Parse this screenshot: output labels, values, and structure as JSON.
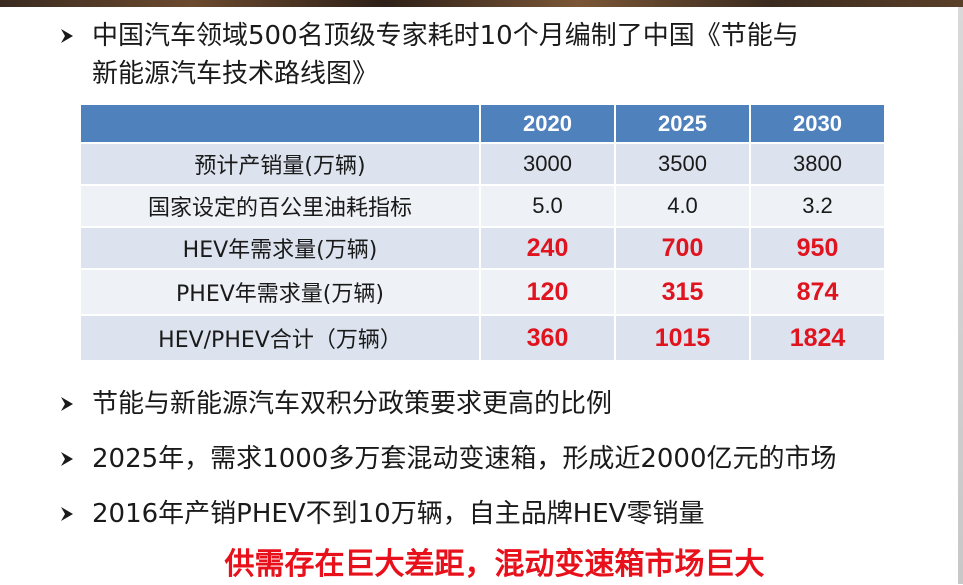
{
  "bullets": [
    "中国汽车领域500名顶级专家耗时10个月编制了中国《节能与新能源汽车技术路线图》",
    "节能与新能源汽车双积分政策要求更高的比例",
    "2025年，需求1000多万套混动变速箱，形成近2000亿元的市场",
    "2016年产销PHEV不到10万辆，自主品牌HEV零销量"
  ],
  "bullet1_lines": [
    "中国汽车领域500名顶级专家耗时10个月编制了中国《节能与",
    "新能源汽车技术路线图》"
  ],
  "table": {
    "headers": [
      "",
      "2020",
      "2025",
      "2030"
    ],
    "rows": [
      {
        "label": "预计产销量(万辆)",
        "values": [
          "3000",
          "3500",
          "3800"
        ],
        "highlight": false
      },
      {
        "label": "国家设定的百公里油耗指标",
        "values": [
          "5.0",
          "4.0",
          "3.2"
        ],
        "highlight": false
      },
      {
        "label": "HEV年需求量(万辆)",
        "values": [
          "240",
          "700",
          "950"
        ],
        "highlight": true
      },
      {
        "label": "PHEV年需求量(万辆)",
        "values": [
          "120",
          "315",
          "874"
        ],
        "highlight": true
      },
      {
        "label": "HEV/PHEV合计（万辆）",
        "values": [
          "360",
          "1015",
          "1824"
        ],
        "highlight": true
      }
    ]
  },
  "conclusion": "供需存在巨大差距，混动变速箱市场巨大",
  "colors": {
    "header_bg": "#4f81bd",
    "row_odd": "#dce3ee",
    "row_even": "#eef1f6",
    "highlight_red": "#e0141e"
  },
  "icons": {
    "bullet": "arrow-bullet-icon"
  }
}
